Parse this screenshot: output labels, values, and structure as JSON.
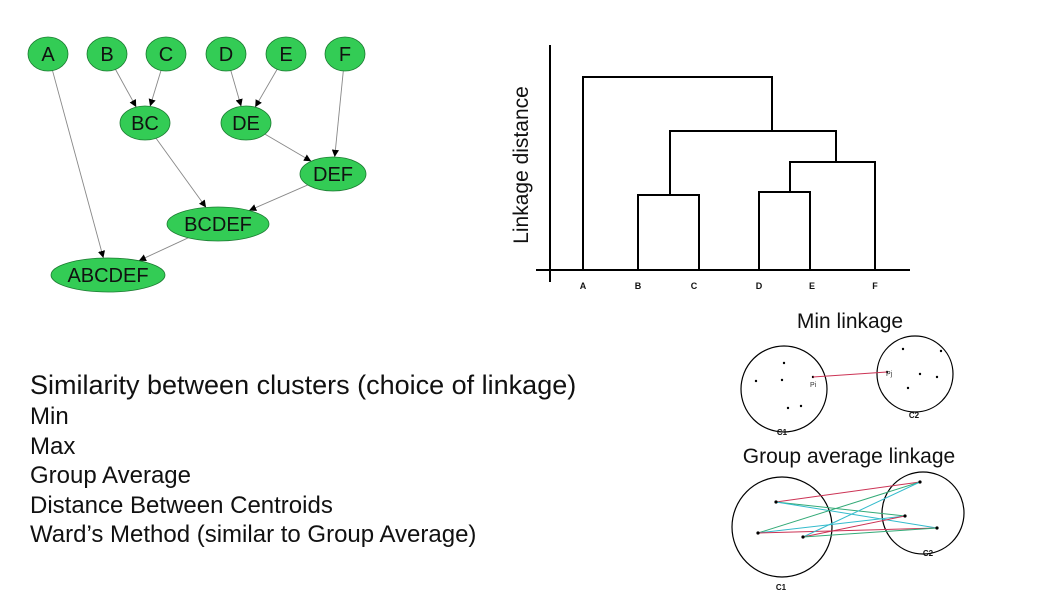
{
  "tree": {
    "nodes": [
      {
        "id": "A",
        "label": "A",
        "parents": []
      },
      {
        "id": "B",
        "label": "B",
        "parents": []
      },
      {
        "id": "C",
        "label": "C",
        "parents": []
      },
      {
        "id": "D",
        "label": "D",
        "parents": []
      },
      {
        "id": "E",
        "label": "E",
        "parents": []
      },
      {
        "id": "F",
        "label": "F",
        "parents": []
      },
      {
        "id": "BC",
        "label": "BC",
        "parents": [
          "B",
          "C"
        ]
      },
      {
        "id": "DE",
        "label": "DE",
        "parents": [
          "D",
          "E"
        ]
      },
      {
        "id": "DEF",
        "label": "DEF",
        "parents": [
          "DE",
          "F"
        ]
      },
      {
        "id": "BCDEF",
        "label": "BCDEF",
        "parents": [
          "BC",
          "DEF"
        ]
      },
      {
        "id": "ABCDEF",
        "label": "ABCDEF",
        "parents": [
          "BCDEF",
          "A"
        ]
      }
    ],
    "node_color": "#33cc55"
  },
  "dendrogram": {
    "ylabel": "Linkage distance",
    "leaves": [
      "A",
      "B",
      "C",
      "D",
      "E",
      "F"
    ]
  },
  "min_linkage": {
    "title": "Min linkage",
    "cluster1_label": "C1",
    "cluster2_label": "C2",
    "point1_label": "Pi",
    "point2_label": "Pj",
    "line_color": "#cc3355"
  },
  "group_average": {
    "title": "Group average linkage",
    "cluster1_label": "C1",
    "cluster2_label": "C2",
    "line_colors": [
      "#cc3355",
      "#33aa77",
      "#33bbcc"
    ]
  },
  "text": {
    "heading": "Similarity between clusters (choice of linkage)",
    "items": [
      "Min",
      "Max",
      "Group Average",
      "Distance Between Centroids",
      "Ward’s Method (similar to Group Average)"
    ]
  }
}
